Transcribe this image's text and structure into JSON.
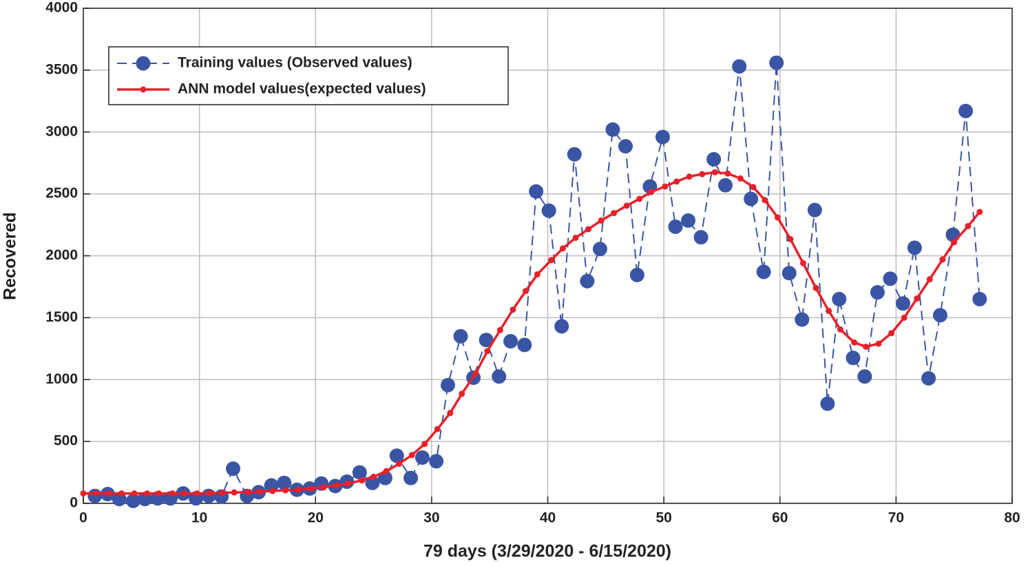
{
  "chart_data": {
    "type": "line",
    "xlabel": "79 days (3/29/2020 - 6/15/2020)",
    "ylabel": "Recovered",
    "xlim": [
      0,
      80
    ],
    "xticks": [
      0,
      10,
      20,
      30,
      40,
      50,
      60,
      70,
      80
    ],
    "ylim": [
      0,
      4000
    ],
    "yticks": [
      0,
      500,
      1000,
      1500,
      2000,
      2500,
      3000,
      3500,
      4000
    ],
    "grid": true,
    "legend": "upper left",
    "series": [
      {
        "name": "Training values (Observed values)",
        "color": "#3a55a4",
        "style": "dashed",
        "marker": "large",
        "x": [
          1.0,
          2.1,
          3.1,
          4.3,
          5.3,
          6.4,
          7.5,
          8.6,
          9.7,
          10.8,
          11.9,
          12.9,
          14.1,
          15.1,
          16.2,
          17.3,
          18.4,
          19.5,
          20.5,
          21.7,
          22.7,
          23.8,
          24.9,
          26.0,
          27.0,
          28.2,
          29.2,
          30.4,
          31.4,
          32.5,
          33.6,
          34.7,
          35.8,
          36.8,
          38.0,
          39.0,
          40.1,
          41.2,
          42.3,
          43.4,
          44.5,
          45.6,
          46.7,
          47.7,
          48.8,
          49.9,
          51.0,
          52.1,
          53.2,
          54.3,
          55.3,
          56.5,
          57.5,
          58.6,
          59.7,
          60.8,
          61.9,
          63.0,
          64.1,
          65.1,
          66.3,
          67.3,
          68.4,
          69.5,
          70.6,
          71.6,
          72.8,
          73.8,
          74.9,
          76.0,
          77.2
        ],
        "values": [
          60,
          75,
          35,
          20,
          35,
          40,
          40,
          80,
          40,
          60,
          55,
          280,
          60,
          90,
          145,
          165,
          110,
          120,
          160,
          140,
          175,
          250,
          165,
          205,
          385,
          205,
          370,
          340,
          955,
          1350,
          1015,
          1320,
          1025,
          1310,
          1280,
          2520,
          2365,
          1430,
          2820,
          1795,
          2055,
          3020,
          2885,
          1845,
          2560,
          2960,
          2235,
          2285,
          2150,
          2780,
          2570,
          3530,
          2460,
          1870,
          3560,
          1860,
          1485,
          2370,
          805,
          1650,
          1175,
          1025,
          1705,
          1815,
          1615,
          2065,
          1010,
          1520,
          2170,
          3170,
          1650
        ]
      },
      {
        "name": "ANN model values(expected values)",
        "color": "#e8202a",
        "style": "solid",
        "marker": "small",
        "x": [
          0,
          1.1,
          2.2,
          3.3,
          4.4,
          5.5,
          6.5,
          7.7,
          8.7,
          9.8,
          10.9,
          12.0,
          13.0,
          14.2,
          15.2,
          16.3,
          17.4,
          18.5,
          19.6,
          20.7,
          21.8,
          22.8,
          24.0,
          25.0,
          26.1,
          27.2,
          28.3,
          29.4,
          30.5,
          31.6,
          32.6,
          33.8,
          34.8,
          35.9,
          37.0,
          38.1,
          39.1,
          40.3,
          41.3,
          42.4,
          43.5,
          44.6,
          45.7,
          46.8,
          47.9,
          48.9,
          50.1,
          51.1,
          52.2,
          53.3,
          54.4,
          55.5,
          56.6,
          57.7,
          58.7,
          59.8,
          60.9,
          62.0,
          63.1,
          64.2,
          65.2,
          66.4,
          67.4,
          68.5,
          69.6,
          70.7,
          71.8,
          72.9,
          74.0,
          75.0,
          76.2,
          77.2
        ],
        "values": [
          80,
          80,
          80,
          80,
          80,
          80,
          80,
          80,
          80,
          80,
          82,
          85,
          88,
          90,
          95,
          100,
          105,
          110,
          120,
          130,
          145,
          160,
          185,
          215,
          260,
          320,
          390,
          480,
          600,
          730,
          885,
          1050,
          1230,
          1400,
          1565,
          1715,
          1850,
          1965,
          2060,
          2145,
          2215,
          2285,
          2345,
          2405,
          2460,
          2515,
          2560,
          2600,
          2640,
          2660,
          2675,
          2665,
          2625,
          2555,
          2450,
          2310,
          2135,
          1940,
          1740,
          1555,
          1405,
          1300,
          1265,
          1290,
          1375,
          1500,
          1655,
          1810,
          1970,
          2110,
          2240,
          2355
        ]
      }
    ]
  }
}
